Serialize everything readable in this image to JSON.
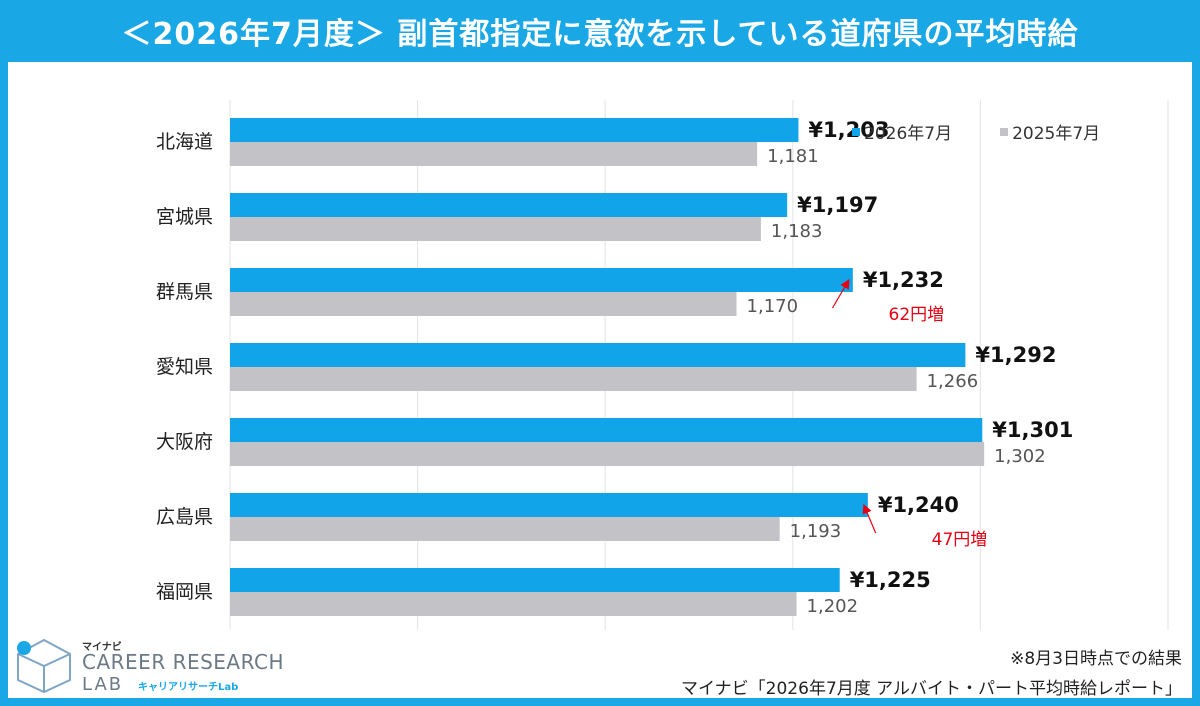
{
  "title": "＜2026年7月度＞ 副首都指定に意欲を示している道府県の平均時給",
  "legend": [
    {
      "label": "2026年7月",
      "color": "#12a4e8"
    },
    {
      "label": "2025年7月",
      "color": "#c3c2c7"
    }
  ],
  "footnote": "※8月3日時点での結果",
  "source": "マイナビ「2026年7月度 アルバイト・パート平均時給レポート」",
  "logo": {
    "small": "マイナビ",
    "main": "CAREER RESEARCH",
    "lab": "LAB",
    "kana": "キャリアリサーチLab"
  },
  "chart_data": {
    "type": "bar",
    "orientation": "horizontal",
    "categories": [
      "北海道",
      "宮城県",
      "群馬県",
      "愛知県",
      "大阪府",
      "広島県",
      "福岡県"
    ],
    "series": [
      {
        "name": "2026年7月",
        "values": [
          1203,
          1197,
          1232,
          1292,
          1301,
          1240,
          1225
        ],
        "labels": [
          "¥1,203",
          "¥1,197",
          "¥1,232",
          "¥1,292",
          "¥1,301",
          "¥1,240",
          "¥1,225"
        ]
      },
      {
        "name": "2025年7月",
        "values": [
          1181,
          1183,
          1170,
          1266,
          1302,
          1193,
          1202
        ],
        "labels": [
          "1,181",
          "1,183",
          "1,170",
          "1,266",
          "1,302",
          "1,193",
          "1,202"
        ]
      }
    ],
    "xlim": [
      900,
      1400
    ],
    "annotations": [
      {
        "category": "群馬県",
        "text": "62円増"
      },
      {
        "category": "広島県",
        "text": "47円増"
      }
    ],
    "grid": true,
    "legend_position": "top-right"
  }
}
